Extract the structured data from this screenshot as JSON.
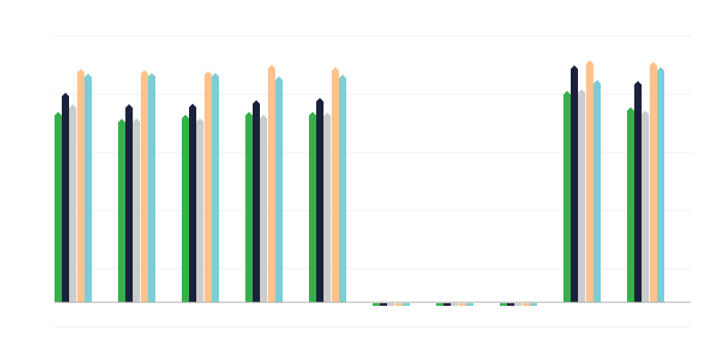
{
  "chart_data": {
    "type": "bar",
    "title": "",
    "xlabel": "",
    "ylabel": "",
    "categories": [
      "",
      "",
      "",
      "",
      "",
      "",
      "",
      "",
      "",
      ""
    ],
    "ylim": [
      -0.42,
      4.58
    ],
    "gridlines": [
      -0.42,
      0.58,
      1.58,
      2.58,
      3.58,
      4.58
    ],
    "grid": true,
    "legend": "none",
    "series": [
      {
        "color": "#37b04c",
        "values": [
          3.28,
          3.16,
          3.23,
          3.28,
          3.28,
          -0.06,
          -0.06,
          -0.06,
          3.64,
          3.36
        ]
      },
      {
        "color": "#1a223b",
        "values": [
          3.61,
          3.41,
          3.42,
          3.48,
          3.52,
          -0.06,
          -0.06,
          -0.06,
          4.08,
          3.81
        ]
      },
      {
        "color": "#cccccc",
        "values": [
          3.41,
          3.17,
          3.17,
          3.23,
          3.27,
          -0.06,
          -0.06,
          -0.06,
          3.67,
          3.3
        ]
      },
      {
        "color": "#ffc28c",
        "values": [
          4.02,
          4.0,
          3.98,
          4.09,
          4.05,
          -0.06,
          -0.06,
          -0.06,
          4.17,
          4.14
        ]
      },
      {
        "color": "#7ccdd6",
        "values": [
          3.94,
          3.95,
          3.95,
          3.89,
          3.92,
          -0.06,
          -0.06,
          -0.06,
          3.83,
          4.05
        ]
      }
    ]
  }
}
